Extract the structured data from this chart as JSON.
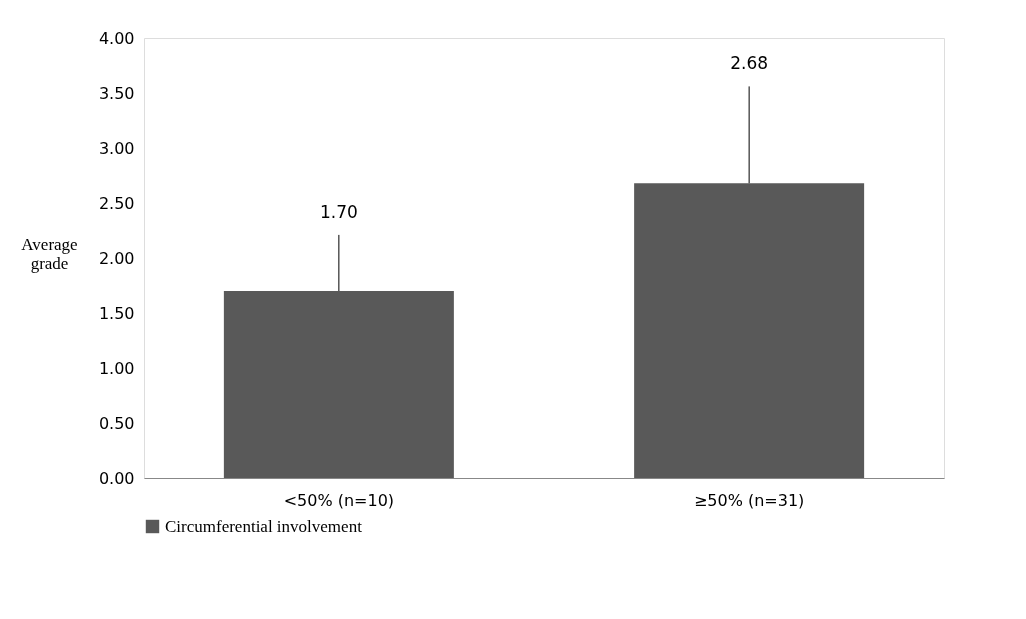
{
  "chart_data": {
    "type": "bar",
    "categories": [
      "<50% (n=10)",
      "≥50% (n=31)"
    ],
    "series": [
      {
        "name": "Circumferential involvement",
        "color": "#595959",
        "values": [
          1.7,
          2.68
        ],
        "errors": [
          [
            1.7,
            2.21
          ],
          [
            2.68,
            3.56
          ]
        ]
      }
    ],
    "ylabel": "Average grade",
    "ylim": [
      0,
      4
    ],
    "yticks": [
      {
        "value": 0,
        "label": "0.00"
      },
      {
        "value": 0.5,
        "label": "0.50"
      },
      {
        "value": 1,
        "label": "1.00"
      },
      {
        "value": 1.5,
        "label": "1.50"
      },
      {
        "value": 2,
        "label": "2.00"
      },
      {
        "value": 2.5,
        "label": "2.50"
      },
      {
        "value": 3,
        "label": "3.00"
      },
      {
        "value": 3.5,
        "label": "3.50"
      },
      {
        "value": 4,
        "label": "4.00"
      }
    ],
    "value_labels": [
      "1.70",
      "2.68"
    ],
    "legend": "bottom",
    "grid": false
  }
}
